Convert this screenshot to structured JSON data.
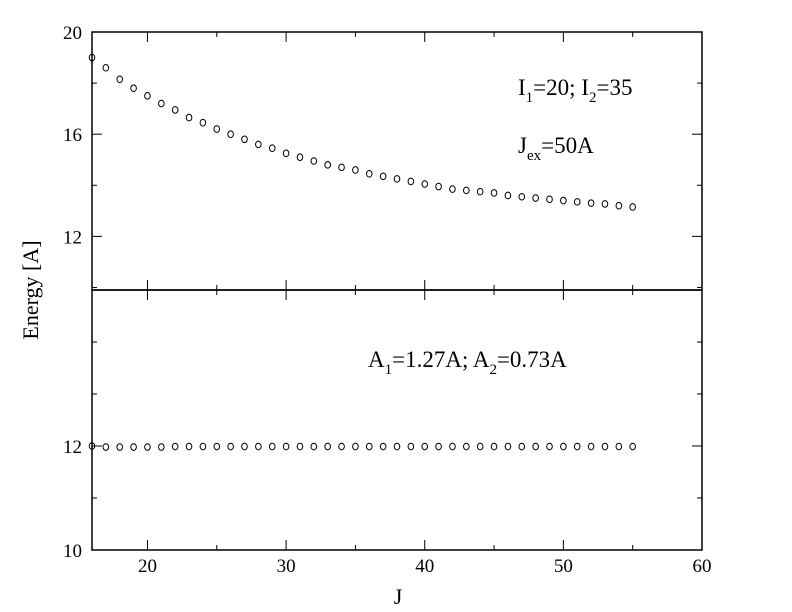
{
  "chart_data": [
    {
      "type": "scatter",
      "panel": "top",
      "xlabel": "J",
      "ylabel": "Energy [A]",
      "xlim": [
        16,
        60
      ],
      "ylim": [
        9.9,
        20
      ],
      "yticks": [
        12,
        16,
        20
      ],
      "yticklabels": [
        "12",
        "16",
        "20"
      ],
      "annotations": [
        {
          "base": "I",
          "sub": "1",
          "tail": "=20; "
        },
        {
          "base": "I",
          "sub": "2",
          "tail": "=35"
        },
        {
          "base": "J",
          "sub": "ex",
          "tail": "=50A"
        }
      ],
      "series": [
        {
          "x": [
            16,
            17,
            18,
            19,
            20,
            21,
            22,
            23,
            24,
            25,
            26,
            27,
            28,
            29,
            30,
            31,
            32,
            33,
            34,
            35,
            36,
            37,
            38,
            39,
            40,
            41,
            42,
            43,
            44,
            45,
            46,
            47,
            48,
            49,
            50,
            51,
            52,
            53,
            54,
            55
          ],
          "y": [
            19.0,
            18.6,
            18.15,
            17.8,
            17.5,
            17.2,
            16.95,
            16.65,
            16.45,
            16.2,
            16.0,
            15.8,
            15.6,
            15.45,
            15.25,
            15.1,
            14.95,
            14.8,
            14.7,
            14.6,
            14.45,
            14.35,
            14.25,
            14.15,
            14.05,
            13.95,
            13.85,
            13.8,
            13.75,
            13.7,
            13.6,
            13.55,
            13.5,
            13.45,
            13.4,
            13.35,
            13.3,
            13.27,
            13.2,
            13.15
          ]
        }
      ]
    },
    {
      "type": "scatter",
      "panel": "bottom",
      "xlabel": "J",
      "xlim": [
        16,
        60
      ],
      "ylim": [
        10,
        15.0
      ],
      "xticks": [
        20,
        30,
        40,
        50,
        60
      ],
      "xticklabels": [
        "20",
        "30",
        "40",
        "50",
        "60"
      ],
      "yticks": [
        10,
        12
      ],
      "yticklabels": [
        "10",
        "12"
      ],
      "annotations": [
        {
          "base": "A",
          "sub": "1",
          "tail": "=1.27A; "
        },
        {
          "base": "A",
          "sub": "2",
          "tail": "=0.73A"
        }
      ],
      "series": [
        {
          "x": [
            16,
            17,
            18,
            19,
            20,
            21,
            22,
            23,
            24,
            25,
            26,
            27,
            28,
            29,
            30,
            31,
            32,
            33,
            34,
            35,
            36,
            37,
            38,
            39,
            40,
            41,
            42,
            43,
            44,
            45,
            46,
            47,
            48,
            49,
            50,
            51,
            52,
            53,
            54,
            55
          ],
          "y": [
            12.0,
            11.98,
            11.98,
            11.98,
            11.98,
            11.98,
            11.99,
            11.99,
            11.99,
            11.99,
            11.99,
            11.99,
            11.99,
            11.99,
            11.99,
            11.99,
            11.99,
            11.99,
            11.99,
            11.99,
            11.99,
            11.99,
            11.99,
            11.99,
            11.99,
            11.99,
            11.99,
            11.99,
            11.99,
            11.99,
            11.99,
            11.99,
            11.99,
            11.99,
            11.99,
            11.99,
            11.99,
            11.99,
            11.99,
            11.99
          ]
        }
      ]
    }
  ]
}
